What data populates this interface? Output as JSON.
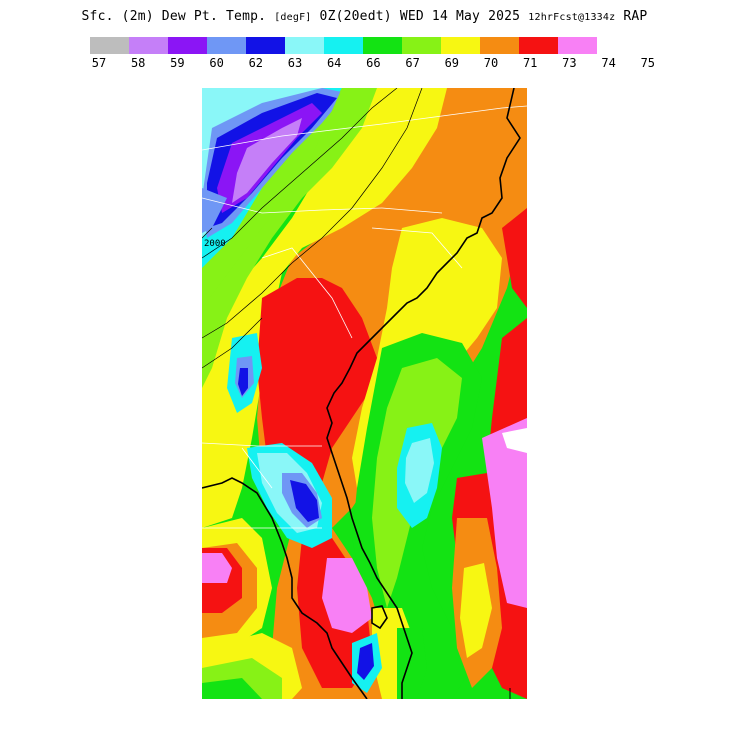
{
  "header": {
    "prefix": "Sfc. (2m) Dew Pt. Temp.",
    "unit": "[degF]",
    "run": "0Z(20edt) WED 14 May 2025",
    "forecast": "12hrFcst@1334z",
    "model": "RAP"
  },
  "legend": {
    "colors": [
      "#bdbdbd",
      "#c57ff8",
      "#8b15f5",
      "#6f97f5",
      "#1212e6",
      "#8af7f8",
      "#15f1f1",
      "#13e313",
      "#87f216",
      "#f7f712",
      "#f58c12",
      "#f51212",
      "#f880f5"
    ],
    "labels": [
      "57",
      "58",
      "59",
      "60",
      "62",
      "63",
      "64",
      "66",
      "67",
      "69",
      "70",
      "71",
      "73",
      "74",
      "75"
    ]
  },
  "map": {
    "contour_label": "2000",
    "palette": {
      "blue": "#1212e6",
      "lightblue": "#6f97f5",
      "purple": "#8b15f5",
      "lavender": "#c57ff8",
      "cyan": "#15f1f1",
      "paleCyan": "#8af7f8",
      "green": "#13e313",
      "lime": "#87f216",
      "yellow": "#f7f712",
      "orange": "#f58c12",
      "red": "#f51212",
      "pink": "#f880f5",
      "white": "#ffffff",
      "coast": "#000000",
      "border": "#ffffff"
    }
  }
}
